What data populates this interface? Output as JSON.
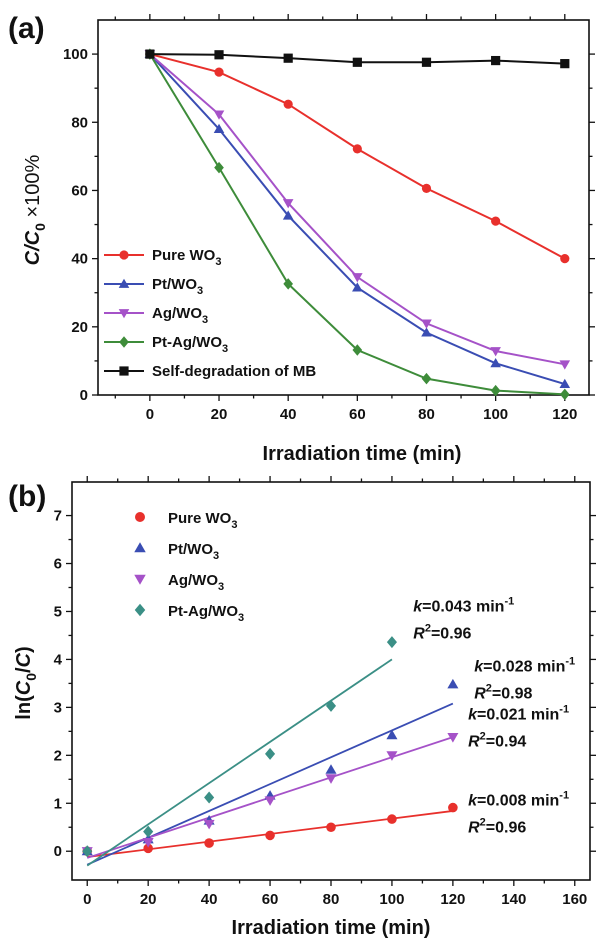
{
  "panels": [
    {
      "panel_label": "(a)",
      "chart_data": {
        "type": "line",
        "xlabel": "Irradiation time (min)",
        "ylabel": "C/C0 ×100%",
        "xlim": [
          -15,
          127
        ],
        "ylim": [
          0,
          110
        ],
        "xticks": [
          0,
          20,
          40,
          60,
          80,
          100,
          120
        ],
        "yticks": [
          0,
          20,
          40,
          60,
          80,
          100
        ],
        "legend_position": "bottom-left",
        "series": [
          {
            "name": "Pure WO3",
            "color": "#e8302c",
            "marker": "circle",
            "x": [
              0,
              20,
              40,
              60,
              80,
              100,
              120
            ],
            "y": [
              100,
              94.7,
              85.3,
              72.2,
              60.6,
              51.0,
              40.0
            ]
          },
          {
            "name": "Pt/WO3",
            "color": "#3a4db3",
            "marker": "triangle-up",
            "x": [
              0,
              20,
              40,
              60,
              80,
              100,
              120
            ],
            "y": [
              100,
              78.0,
              52.6,
              31.5,
              18.3,
              9.3,
              3.2
            ]
          },
          {
            "name": "Ag/WO3",
            "color": "#a552c8",
            "marker": "triangle-down",
            "x": [
              0,
              20,
              40,
              60,
              80,
              100,
              120
            ],
            "y": [
              100,
              82.3,
              56.3,
              34.6,
              21.0,
              12.9,
              9.0
            ]
          },
          {
            "name": "Pt-Ag/WO3",
            "color": "#3e8c3a",
            "marker": "diamond",
            "x": [
              0,
              20,
              40,
              60,
              80,
              100,
              120
            ],
            "y": [
              100,
              66.7,
              32.6,
              13.2,
              4.8,
              1.3,
              0.2
            ]
          },
          {
            "name": "Self-degradation of MB",
            "color": "#111111",
            "marker": "square",
            "x": [
              0,
              20,
              40,
              60,
              80,
              100,
              120
            ],
            "y": [
              100,
              99.8,
              98.8,
              97.6,
              97.6,
              98.1,
              97.2
            ]
          }
        ]
      }
    },
    {
      "panel_label": "(b)",
      "chart_data": {
        "type": "scatter",
        "xlabel": "Irradiation time (min)",
        "ylabel": "ln(C0/C)",
        "xlim": [
          -5,
          165
        ],
        "ylim": [
          -0.6,
          7.7
        ],
        "xticks": [
          0,
          20,
          40,
          60,
          80,
          100,
          120,
          140,
          160
        ],
        "yticks": [
          0,
          1,
          2,
          3,
          4,
          5,
          6,
          7
        ],
        "legend_position": "top-left",
        "series": [
          {
            "name": "Pure WO3",
            "color": "#e8302c",
            "marker": "circle",
            "x": [
              0,
              20,
              40,
              60,
              80,
              100,
              120
            ],
            "y": [
              0,
              0.06,
              0.17,
              0.33,
              0.5,
              0.67,
              0.91
            ],
            "fit": {
              "x": [
                0,
                120
              ],
              "y": [
                -0.12,
                0.84
              ]
            }
          },
          {
            "name": "Pt/WO3",
            "color": "#3a4db3",
            "marker": "triangle-up",
            "x": [
              0,
              20,
              40,
              60,
              80,
              100,
              120
            ],
            "y": [
              0,
              0.25,
              0.64,
              1.16,
              1.7,
              2.42,
              3.48
            ],
            "fit": {
              "x": [
                0,
                120
              ],
              "y": [
                -0.28,
                3.08
              ]
            }
          },
          {
            "name": "Ag/WO3",
            "color": "#a552c8",
            "marker": "triangle-down",
            "x": [
              0,
              20,
              40,
              60,
              80,
              100,
              120
            ],
            "y": [
              0,
              0.19,
              0.57,
              1.06,
              1.52,
              2.0,
              2.38
            ],
            "fit": {
              "x": [
                0,
                120
              ],
              "y": [
                -0.14,
                2.38
              ]
            }
          },
          {
            "name": "Pt-Ag/WO3",
            "color": "#3b8f86",
            "marker": "diamond",
            "x": [
              0,
              20,
              40,
              60,
              80,
              100
            ],
            "y": [
              0,
              0.41,
              1.12,
              2.03,
              3.03,
              4.36
            ],
            "fit": {
              "x": [
                0,
                100
              ],
              "y": [
                -0.3,
                4.0
              ]
            }
          }
        ],
        "annotations": [
          {
            "k": "0.043",
            "unit": "min",
            "r2": "0.96",
            "x": 107,
            "y": 5.0
          },
          {
            "k": "0.028",
            "unit": "min",
            "r2": "0.98",
            "x": 127,
            "y": 3.75
          },
          {
            "k": "0.021",
            "unit": "min",
            "r2": "0.94",
            "x": 125,
            "y": 2.75
          },
          {
            "k": "0.008",
            "unit": "min",
            "r2": "0.96",
            "x": 125,
            "y": 0.95
          }
        ]
      }
    }
  ]
}
